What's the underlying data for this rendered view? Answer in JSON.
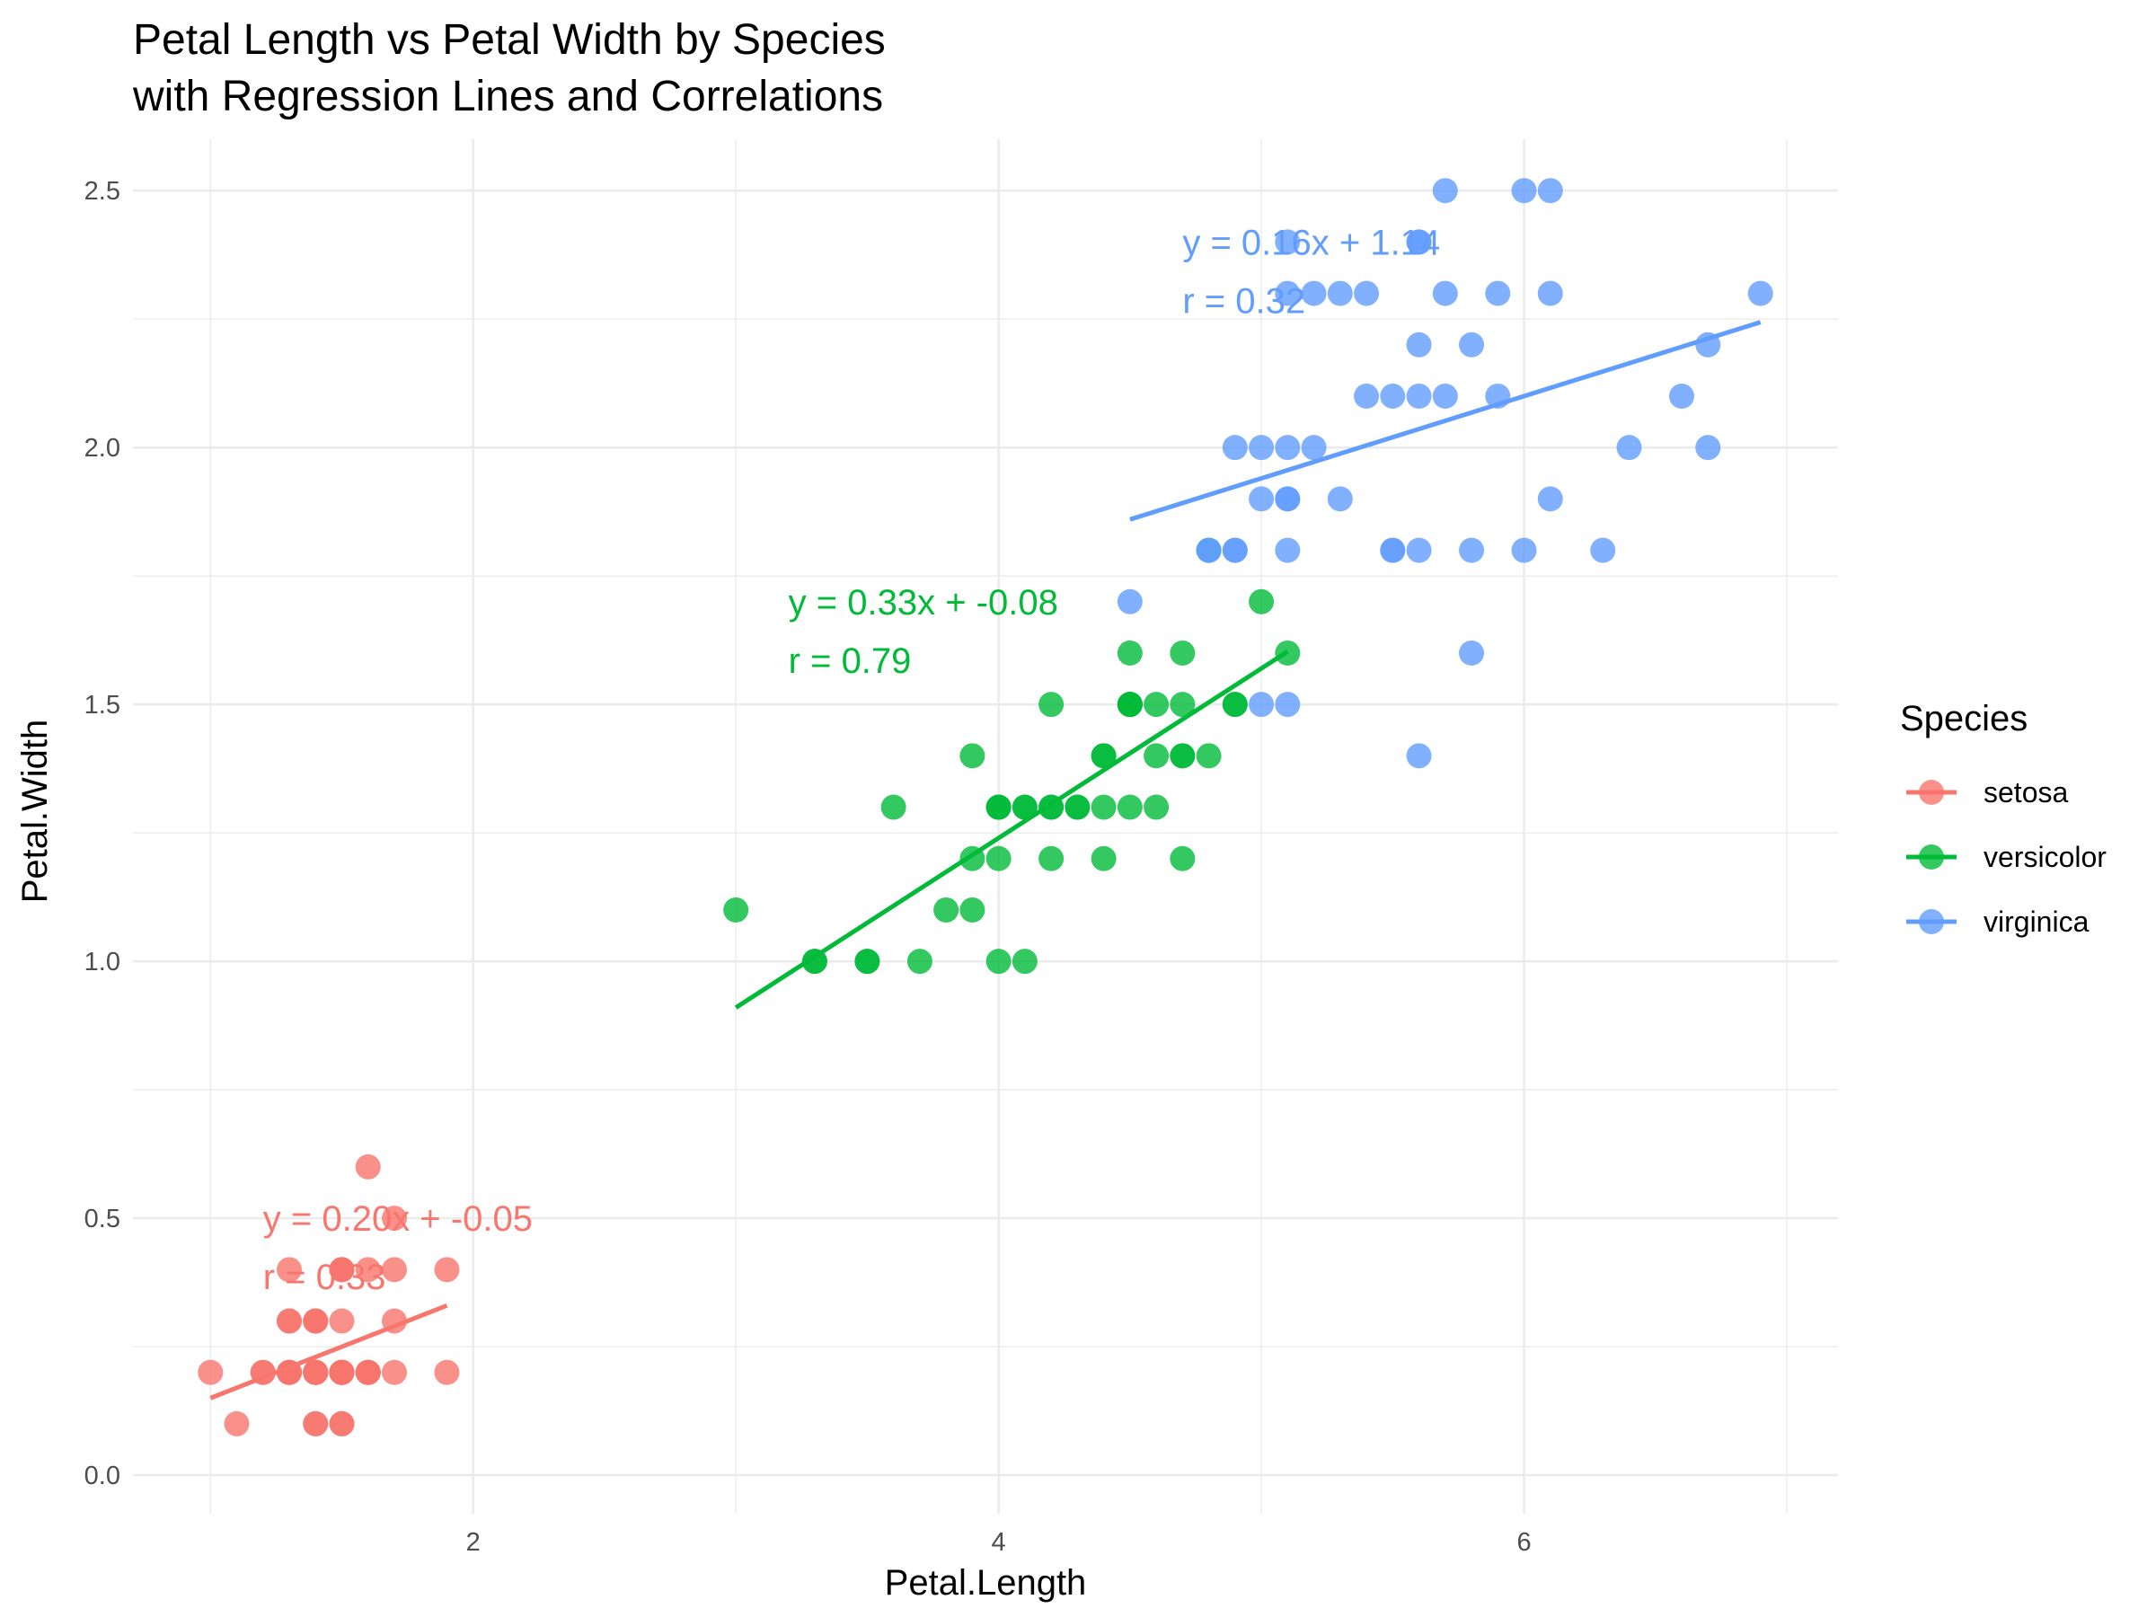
{
  "chart_data": {
    "type": "scatter",
    "title": "Petal Length vs Petal Width by Species",
    "subtitle": "with Regression Lines and Correlations",
    "xlabel": "Petal.Length",
    "ylabel": "Petal.Width",
    "xlim": [
      0.705,
      7.195
    ],
    "ylim": [
      -0.075,
      2.6
    ],
    "x_ticks": [
      2,
      4,
      6
    ],
    "y_ticks": [
      0.0,
      0.5,
      1.0,
      1.5,
      2.0,
      2.5
    ],
    "x_tick_labels": [
      "2",
      "4",
      "6"
    ],
    "y_tick_labels": [
      "0.0",
      "0.5",
      "1.0",
      "1.5",
      "2.0",
      "2.5"
    ],
    "grid": true,
    "legend": {
      "title": "Species",
      "position": "right"
    },
    "series": [
      {
        "name": "setosa",
        "color": "#F8766D",
        "points": [
          [
            1.4,
            0.2
          ],
          [
            1.4,
            0.2
          ],
          [
            1.3,
            0.2
          ],
          [
            1.5,
            0.2
          ],
          [
            1.4,
            0.2
          ],
          [
            1.7,
            0.4
          ],
          [
            1.4,
            0.3
          ],
          [
            1.5,
            0.2
          ],
          [
            1.4,
            0.2
          ],
          [
            1.5,
            0.1
          ],
          [
            1.5,
            0.2
          ],
          [
            1.6,
            0.2
          ],
          [
            1.4,
            0.1
          ],
          [
            1.1,
            0.1
          ],
          [
            1.2,
            0.2
          ],
          [
            1.5,
            0.4
          ],
          [
            1.3,
            0.4
          ],
          [
            1.4,
            0.3
          ],
          [
            1.7,
            0.3
          ],
          [
            1.5,
            0.3
          ],
          [
            1.7,
            0.2
          ],
          [
            1.5,
            0.4
          ],
          [
            1.0,
            0.2
          ],
          [
            1.7,
            0.5
          ],
          [
            1.9,
            0.2
          ],
          [
            1.6,
            0.2
          ],
          [
            1.6,
            0.4
          ],
          [
            1.5,
            0.2
          ],
          [
            1.4,
            0.2
          ],
          [
            1.6,
            0.2
          ],
          [
            1.6,
            0.2
          ],
          [
            1.5,
            0.4
          ],
          [
            1.5,
            0.1
          ],
          [
            1.4,
            0.2
          ],
          [
            1.5,
            0.2
          ],
          [
            1.2,
            0.2
          ],
          [
            1.3,
            0.2
          ],
          [
            1.4,
            0.1
          ],
          [
            1.3,
            0.2
          ],
          [
            1.5,
            0.2
          ],
          [
            1.3,
            0.3
          ],
          [
            1.3,
            0.3
          ],
          [
            1.3,
            0.2
          ],
          [
            1.6,
            0.6
          ],
          [
            1.9,
            0.4
          ],
          [
            1.4,
            0.3
          ],
          [
            1.6,
            0.2
          ],
          [
            1.4,
            0.2
          ],
          [
            1.5,
            0.2
          ],
          [
            1.4,
            0.2
          ]
        ],
        "fit": {
          "slope": 0.2,
          "intercept": -0.05,
          "x_range": [
            1.0,
            1.9
          ]
        },
        "equation": "y = 0.20x + -0.05",
        "correlation": "r = 0.33",
        "annotation_at": [
          1.2,
          0.5
        ]
      },
      {
        "name": "versicolor",
        "color": "#00BA38",
        "points": [
          [
            4.7,
            1.4
          ],
          [
            4.5,
            1.5
          ],
          [
            4.9,
            1.5
          ],
          [
            4.0,
            1.3
          ],
          [
            4.6,
            1.5
          ],
          [
            4.5,
            1.3
          ],
          [
            4.7,
            1.6
          ],
          [
            3.3,
            1.0
          ],
          [
            4.6,
            1.3
          ],
          [
            3.9,
            1.4
          ],
          [
            3.5,
            1.0
          ],
          [
            4.2,
            1.5
          ],
          [
            4.0,
            1.0
          ],
          [
            4.7,
            1.4
          ],
          [
            3.6,
            1.3
          ],
          [
            4.4,
            1.4
          ],
          [
            4.5,
            1.5
          ],
          [
            4.1,
            1.0
          ],
          [
            4.5,
            1.5
          ],
          [
            3.9,
            1.1
          ],
          [
            4.8,
            1.8
          ],
          [
            4.0,
            1.3
          ],
          [
            4.9,
            1.5
          ],
          [
            4.7,
            1.2
          ],
          [
            4.3,
            1.3
          ],
          [
            4.4,
            1.4
          ],
          [
            4.8,
            1.4
          ],
          [
            5.0,
            1.7
          ],
          [
            4.5,
            1.5
          ],
          [
            3.5,
            1.0
          ],
          [
            3.8,
            1.1
          ],
          [
            3.7,
            1.0
          ],
          [
            3.9,
            1.2
          ],
          [
            5.1,
            1.6
          ],
          [
            4.5,
            1.5
          ],
          [
            4.5,
            1.6
          ],
          [
            4.7,
            1.5
          ],
          [
            4.4,
            1.3
          ],
          [
            4.1,
            1.3
          ],
          [
            4.0,
            1.3
          ],
          [
            4.4,
            1.2
          ],
          [
            4.6,
            1.4
          ],
          [
            4.0,
            1.2
          ],
          [
            3.3,
            1.0
          ],
          [
            4.2,
            1.3
          ],
          [
            4.2,
            1.2
          ],
          [
            4.2,
            1.3
          ],
          [
            4.3,
            1.3
          ],
          [
            3.0,
            1.1
          ],
          [
            4.1,
            1.3
          ]
        ],
        "fit": {
          "slope": 0.33,
          "intercept": -0.08,
          "x_range": [
            3.0,
            5.1
          ]
        },
        "equation": "y = 0.33x + -0.08",
        "correlation": "r = 0.79",
        "annotation_at": [
          3.2,
          1.7
        ]
      },
      {
        "name": "virginica",
        "color": "#619CFF",
        "points": [
          [
            6.0,
            2.5
          ],
          [
            5.1,
            1.9
          ],
          [
            5.9,
            2.1
          ],
          [
            5.6,
            1.8
          ],
          [
            5.8,
            2.2
          ],
          [
            6.6,
            2.1
          ],
          [
            4.5,
            1.7
          ],
          [
            6.3,
            1.8
          ],
          [
            5.8,
            1.8
          ],
          [
            6.1,
            2.5
          ],
          [
            5.1,
            2.0
          ],
          [
            5.3,
            1.9
          ],
          [
            5.5,
            2.1
          ],
          [
            5.0,
            2.0
          ],
          [
            5.1,
            2.4
          ],
          [
            5.3,
            2.3
          ],
          [
            5.5,
            1.8
          ],
          [
            6.7,
            2.2
          ],
          [
            6.9,
            2.3
          ],
          [
            5.0,
            1.5
          ],
          [
            5.7,
            2.3
          ],
          [
            4.9,
            2.0
          ],
          [
            6.7,
            2.0
          ],
          [
            4.9,
            1.8
          ],
          [
            5.7,
            2.1
          ],
          [
            6.0,
            1.8
          ],
          [
            4.8,
            1.8
          ],
          [
            4.9,
            1.8
          ],
          [
            5.6,
            2.1
          ],
          [
            5.8,
            1.6
          ],
          [
            6.1,
            1.9
          ],
          [
            6.4,
            2.0
          ],
          [
            5.6,
            2.2
          ],
          [
            5.1,
            1.5
          ],
          [
            5.6,
            1.4
          ],
          [
            6.1,
            2.3
          ],
          [
            5.6,
            2.4
          ],
          [
            5.5,
            1.8
          ],
          [
            4.8,
            1.8
          ],
          [
            5.4,
            2.1
          ],
          [
            5.6,
            2.4
          ],
          [
            5.1,
            2.3
          ],
          [
            5.1,
            1.9
          ],
          [
            5.9,
            2.3
          ],
          [
            5.7,
            2.5
          ],
          [
            5.2,
            2.3
          ],
          [
            5.0,
            1.9
          ],
          [
            5.2,
            2.0
          ],
          [
            5.4,
            2.3
          ],
          [
            5.1,
            1.8
          ]
        ],
        "fit": {
          "slope": 0.16,
          "intercept": 1.14,
          "x_range": [
            4.5,
            6.9
          ]
        },
        "equation": "y = 0.16x + 1.14",
        "correlation": "r = 0.32",
        "annotation_at": [
          4.7,
          2.4
        ]
      }
    ]
  }
}
